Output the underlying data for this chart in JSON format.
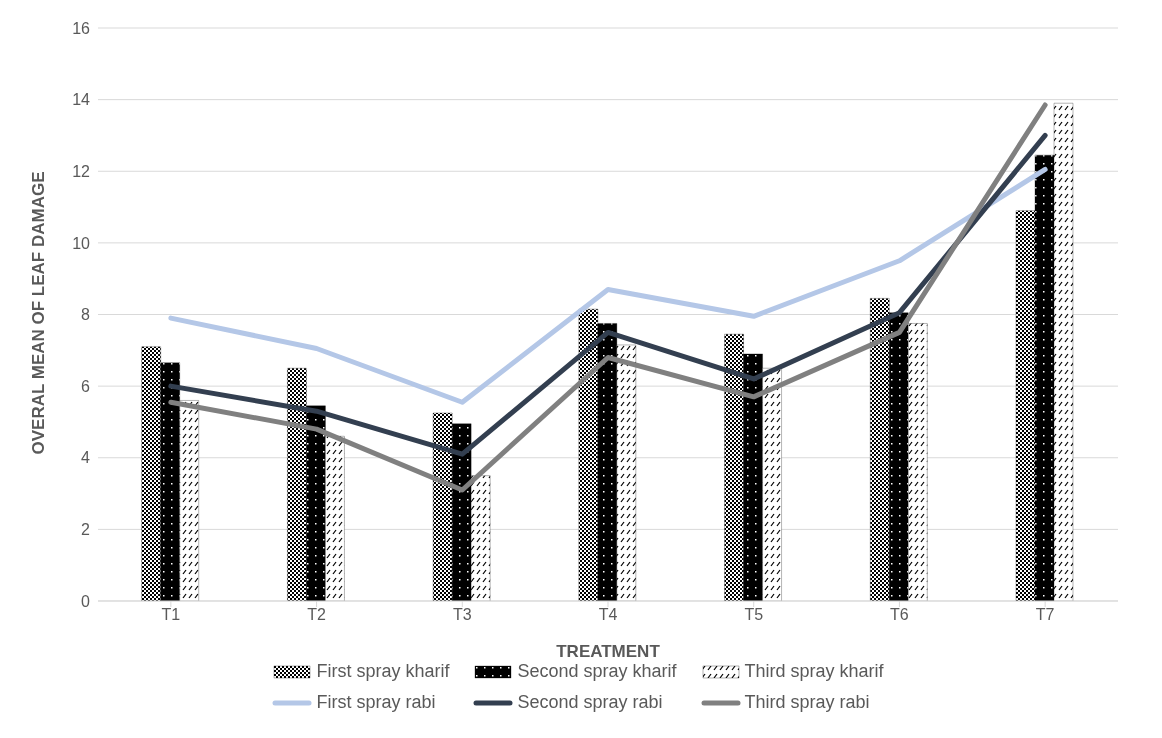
{
  "chart_data": {
    "type": "bar",
    "xlabel": "TREATMENT",
    "ylabel": "OVERAL MEAN OF LEAF DAMAGE",
    "categories": [
      "T1",
      "T2",
      "T3",
      "T4",
      "T5",
      "T6",
      "T7"
    ],
    "series": [
      {
        "name": "First spray kharif",
        "color": "#000000",
        "values": [
          7.1,
          6.5,
          5.25,
          8.15,
          7.45,
          8.45,
          10.9
        ]
      },
      {
        "name": "Second spray kharif",
        "color": "#000000",
        "values": [
          6.65,
          5.45,
          4.95,
          7.75,
          6.9,
          8.05,
          12.45
        ]
      },
      {
        "name": "Third spray kharif",
        "color": "#000000",
        "values": [
          5.6,
          4.6,
          3.5,
          7.15,
          6.5,
          7.75,
          13.9
        ]
      },
      {
        "name": "First spray rabi",
        "type": "line",
        "color": "#b4c7e7",
        "values": [
          7.9,
          7.05,
          5.55,
          8.7,
          7.95,
          9.5,
          12.05
        ]
      },
      {
        "name": "Second spray rabi",
        "type": "line",
        "color": "#333f50",
        "values": [
          6.0,
          5.3,
          4.1,
          7.5,
          6.2,
          8.05,
          13.0
        ]
      },
      {
        "name": "Third spray rabi",
        "type": "line",
        "color": "#808080",
        "values": [
          5.55,
          4.8,
          3.1,
          6.8,
          5.7,
          7.5,
          13.85
        ]
      }
    ],
    "ylim": [
      0,
      16
    ],
    "yticks": [
      0,
      2,
      4,
      6,
      8,
      10,
      12,
      14,
      16
    ],
    "grid": "y",
    "legend": "bottom",
    "marker": "none"
  }
}
